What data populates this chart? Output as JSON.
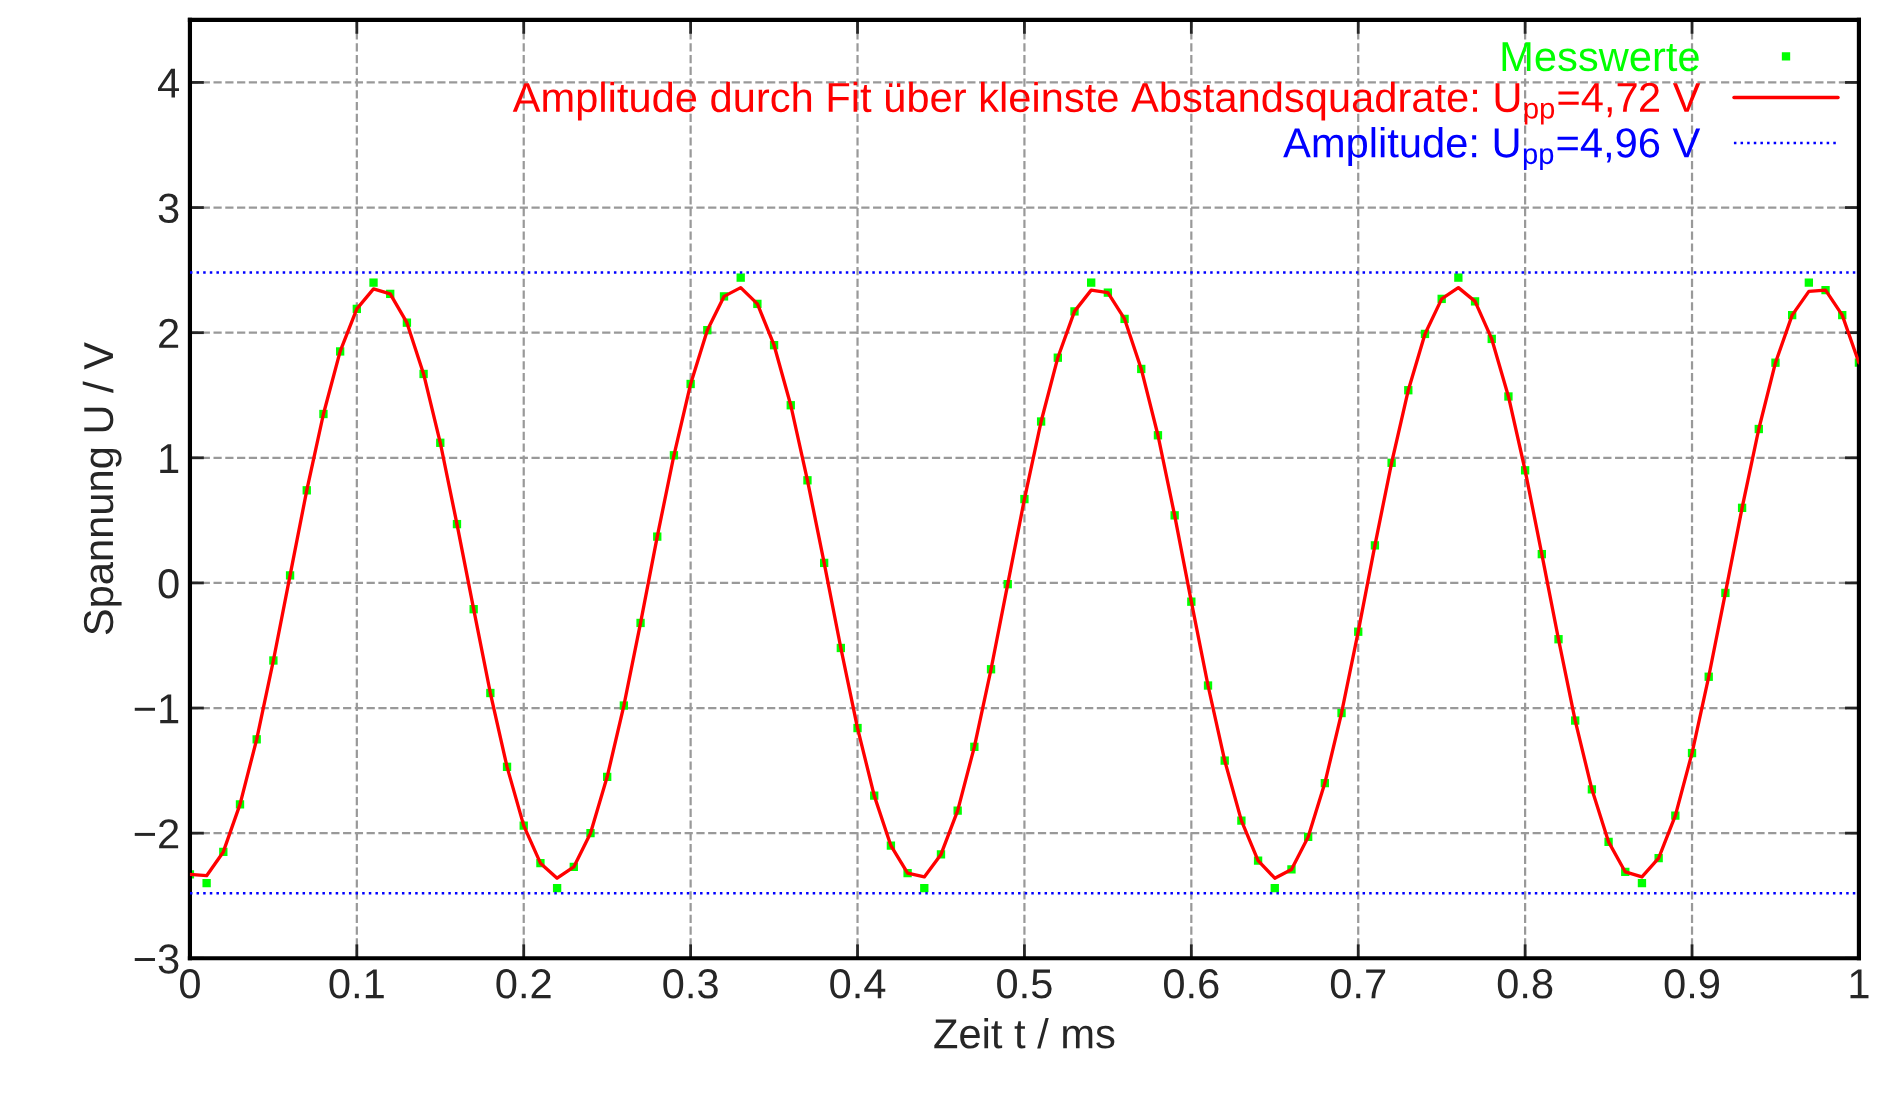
{
  "chart_data": {
    "type": "line",
    "xlabel": "Zeit t / ms",
    "ylabel": "Spannung U / V",
    "xlim": [
      0,
      1
    ],
    "ylim": [
      -3,
      4.5
    ],
    "xticks": [
      0,
      0.1,
      0.2,
      0.3,
      0.4,
      0.5,
      0.6,
      0.7,
      0.8,
      0.9,
      1
    ],
    "yticks": [
      {
        "value": -3,
        "label": "−3"
      },
      {
        "value": -2,
        "label": "−2"
      },
      {
        "value": -1,
        "label": "−1"
      },
      0,
      1,
      2,
      3,
      4
    ],
    "grid": true,
    "legend": "top right",
    "series": [
      {
        "name": "Messwerte",
        "type": "scatter",
        "color": "#00ff00",
        "marker": "square",
        "x": [
          0,
          0.01,
          0.02,
          0.03,
          0.04,
          0.05,
          0.06,
          0.07,
          0.08,
          0.09,
          0.1,
          0.11,
          0.12,
          0.13,
          0.14,
          0.15,
          0.16,
          0.17,
          0.18,
          0.19,
          0.2,
          0.21,
          0.22,
          0.23,
          0.24,
          0.25,
          0.26,
          0.27,
          0.28,
          0.29,
          0.3,
          0.31,
          0.32,
          0.33,
          0.34,
          0.35,
          0.36,
          0.37,
          0.38,
          0.39,
          0.4,
          0.41,
          0.42,
          0.43,
          0.44,
          0.45,
          0.46,
          0.47,
          0.48,
          0.49,
          0.5,
          0.51,
          0.52,
          0.53,
          0.54,
          0.55,
          0.56,
          0.57,
          0.58,
          0.59,
          0.6,
          0.61,
          0.62,
          0.63,
          0.64,
          0.65,
          0.66,
          0.67,
          0.68,
          0.69,
          0.7,
          0.71,
          0.72,
          0.73,
          0.74,
          0.75,
          0.76,
          0.77,
          0.78,
          0.79,
          0.8,
          0.81,
          0.82,
          0.83,
          0.84,
          0.85,
          0.86,
          0.87,
          0.88,
          0.89,
          0.9,
          0.91,
          0.92,
          0.93,
          0.94,
          0.95,
          0.96,
          0.97,
          0.98,
          0.99,
          1
        ],
        "values": [
          -2.33,
          -2.4,
          -2.15,
          -1.77,
          -1.25,
          -0.62,
          0.06,
          0.74,
          1.35,
          1.85,
          2.19,
          2.4,
          2.31,
          2.08,
          1.67,
          1.12,
          0.47,
          -0.21,
          -0.88,
          -1.47,
          -1.94,
          -2.24,
          -2.44,
          -2.27,
          -2.0,
          -1.55,
          -0.98,
          -0.32,
          0.37,
          1.02,
          1.59,
          2.02,
          2.29,
          2.44,
          2.23,
          1.9,
          1.42,
          0.82,
          0.16,
          -0.52,
          -1.16,
          -1.7,
          -2.1,
          -2.32,
          -2.44,
          -2.17,
          -1.82,
          -1.31,
          -0.69,
          -0.01,
          0.67,
          1.29,
          1.8,
          2.17,
          2.4,
          2.32,
          2.11,
          1.71,
          1.18,
          0.54,
          -0.15,
          -0.82,
          -1.42,
          -1.9,
          -2.22,
          -2.44,
          -2.29,
          -2.03,
          -1.6,
          -1.04,
          -0.39,
          0.3,
          0.96,
          1.54,
          1.99,
          2.27,
          2.44,
          2.25,
          1.95,
          1.49,
          0.9,
          0.23,
          -0.45,
          -1.1,
          -1.65,
          -2.07,
          -2.31,
          -2.4,
          -2.2,
          -1.86,
          -1.36,
          -0.75,
          -0.08,
          0.6,
          1.23,
          1.76,
          2.14,
          2.4,
          2.34,
          2.14,
          1.76
        ]
      },
      {
        "name": "Amplitude durch Fit über kleinste Abstandsquadrate: U$_{pp}$=4,72 V",
        "color": "#ff0000",
        "marker": "none",
        "line_style": "solid",
        "x": [
          0,
          0.01,
          0.02,
          0.03,
          0.04,
          0.05,
          0.06,
          0.07,
          0.08,
          0.09,
          0.1,
          0.11,
          0.12,
          0.13,
          0.14,
          0.15,
          0.16,
          0.17,
          0.18,
          0.19,
          0.2,
          0.21,
          0.22,
          0.23,
          0.24,
          0.25,
          0.26,
          0.27,
          0.28,
          0.29,
          0.3,
          0.31,
          0.32,
          0.33,
          0.34,
          0.35,
          0.36,
          0.37,
          0.38,
          0.39,
          0.4,
          0.41,
          0.42,
          0.43,
          0.44,
          0.45,
          0.46,
          0.47,
          0.48,
          0.49,
          0.5,
          0.51,
          0.52,
          0.53,
          0.54,
          0.55,
          0.56,
          0.57,
          0.58,
          0.59,
          0.6,
          0.61,
          0.62,
          0.63,
          0.64,
          0.65,
          0.66,
          0.67,
          0.68,
          0.69,
          0.7,
          0.71,
          0.72,
          0.73,
          0.74,
          0.75,
          0.76,
          0.77,
          0.78,
          0.79,
          0.8,
          0.81,
          0.82,
          0.83,
          0.84,
          0.85,
          0.86,
          0.87,
          0.88,
          0.89,
          0.9,
          0.91,
          0.92,
          0.93,
          0.94,
          0.95,
          0.96,
          0.97,
          0.98,
          0.99,
          1
        ],
        "values": [
          -2.33,
          -2.34,
          -2.15,
          -1.77,
          -1.25,
          -0.62,
          0.06,
          0.74,
          1.35,
          1.85,
          2.19,
          2.35,
          2.31,
          2.08,
          1.67,
          1.12,
          0.47,
          -0.21,
          -0.88,
          -1.47,
          -1.94,
          -2.24,
          -2.36,
          -2.27,
          -2.0,
          -1.55,
          -0.98,
          -0.32,
          0.37,
          1.02,
          1.59,
          2.02,
          2.29,
          2.36,
          2.23,
          1.9,
          1.42,
          0.82,
          0.16,
          -0.52,
          -1.16,
          -1.7,
          -2.1,
          -2.32,
          -2.35,
          -2.17,
          -1.82,
          -1.31,
          -0.69,
          -0.01,
          0.67,
          1.29,
          1.8,
          2.17,
          2.34,
          2.32,
          2.11,
          1.71,
          1.18,
          0.54,
          -0.15,
          -0.82,
          -1.42,
          -1.9,
          -2.22,
          -2.36,
          -2.29,
          -2.03,
          -1.6,
          -1.04,
          -0.39,
          0.3,
          0.96,
          1.54,
          1.99,
          2.27,
          2.36,
          2.25,
          1.95,
          1.49,
          0.9,
          0.23,
          -0.45,
          -1.1,
          -1.65,
          -2.07,
          -2.31,
          -2.35,
          -2.2,
          -1.86,
          -1.36,
          -0.75,
          -0.08,
          0.6,
          1.23,
          1.76,
          2.14,
          2.33,
          2.34,
          2.14,
          1.76
        ]
      },
      {
        "name": "Amplitude: U$_{pp}$=4,96 V",
        "color": "#0000ff",
        "marker": "none",
        "line_style": "dotted",
        "x": [
          0,
          1
        ],
        "values": [
          2.48,
          2.48
        ]
      },
      {
        "color": "#0000ff",
        "marker": "none",
        "line_style": "dotted",
        "x": [
          0,
          1
        ],
        "values": [
          -2.48,
          -2.48
        ]
      }
    ]
  }
}
